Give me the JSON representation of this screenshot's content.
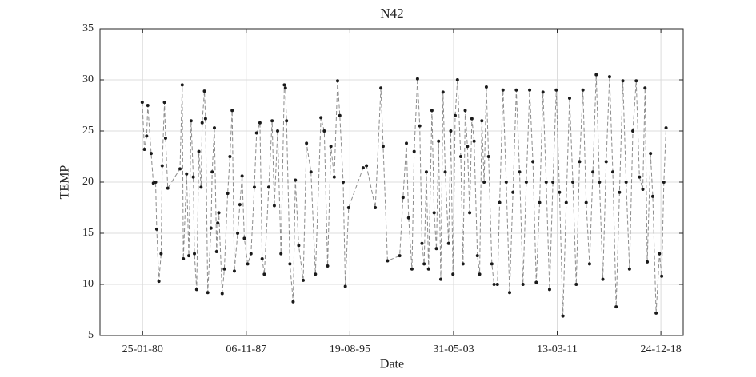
{
  "chart_data": {
    "type": "line",
    "title": "N42",
    "xlabel": "Date",
    "ylabel": "TEMP",
    "x": [
      "1980-01-15",
      "1980-03-15",
      "1980-05-15",
      "1980-06-15",
      "1980-09-15",
      "1980-11-15",
      "1981-01-15",
      "1981-02-15",
      "1981-04-15",
      "1981-06-15",
      "1981-07-15",
      "1981-09-15",
      "1981-10-15",
      "1981-12-15",
      "1982-11-15",
      "1983-01-15",
      "1983-02-15",
      "1983-05-15",
      "1983-07-15",
      "1983-09-15",
      "1983-11-15",
      "1983-12-15",
      "1984-02-15",
      "1984-04-15",
      "1984-06-15",
      "1984-07-15",
      "1984-09-15",
      "1984-10-15",
      "1984-12-15",
      "1985-03-15",
      "1985-04-15",
      "1985-06-15",
      "1985-08-15",
      "1985-09-15",
      "1985-10-15",
      "1986-01-15",
      "1986-03-15",
      "1986-06-15",
      "1986-08-15",
      "1986-10-15",
      "1986-12-15",
      "1987-03-15",
      "1987-05-15",
      "1987-07-15",
      "1987-09-15",
      "1987-12-15",
      "1988-03-15",
      "1988-06-15",
      "1988-08-15",
      "1988-11-15",
      "1989-01-15",
      "1989-03-15",
      "1989-07-15",
      "1989-10-15",
      "1989-12-15",
      "1990-03-15",
      "1990-06-15",
      "1990-09-15",
      "1990-10-15",
      "1990-11-15",
      "1991-02-15",
      "1991-05-15",
      "1991-07-15",
      "1991-10-15",
      "1992-02-15",
      "1992-05-15",
      "1992-09-15",
      "1993-01-15",
      "1993-06-15",
      "1993-09-15",
      "1993-12-15",
      "1994-03-15",
      "1994-06-15",
      "1994-09-15",
      "1994-11-15",
      "1995-02-15",
      "1995-04-15",
      "1995-07-15",
      "1996-08-15",
      "1996-11-15",
      "1997-07-15",
      "1997-12-15",
      "1998-02-15",
      "1998-06-15",
      "1999-05-15",
      "1999-08-15",
      "1999-11-15",
      "2000-01-15",
      "2000-04-15",
      "2000-06-15",
      "2000-09-15",
      "2000-11-15",
      "2001-01-15",
      "2001-03-15",
      "2001-05-15",
      "2001-07-15",
      "2001-10-15",
      "2001-12-15",
      "2002-02-15",
      "2002-04-15",
      "2002-06-15",
      "2002-08-15",
      "2002-10-15",
      "2003-01-15",
      "2003-03-15",
      "2003-05-15",
      "2003-07-15",
      "2003-09-15",
      "2003-12-15",
      "2004-02-15",
      "2004-04-15",
      "2004-06-15",
      "2004-08-15",
      "2004-10-15",
      "2004-12-15",
      "2005-03-15",
      "2005-05-15",
      "2005-07-15",
      "2005-09-15",
      "2005-11-15",
      "2006-01-15",
      "2006-04-15",
      "2006-06-15",
      "2006-09-15",
      "2006-11-15",
      "2007-02-15",
      "2007-05-15",
      "2007-08-15",
      "2007-11-15",
      "2008-02-15",
      "2008-05-15",
      "2008-08-15",
      "2008-11-15",
      "2009-02-15",
      "2009-05-15",
      "2009-08-15",
      "2009-11-15",
      "2010-02-15",
      "2010-05-15",
      "2010-08-15",
      "2010-11-15",
      "2011-02-15",
      "2011-05-15",
      "2011-08-15",
      "2011-11-15",
      "2012-02-15",
      "2012-05-15",
      "2012-08-15",
      "2012-11-15",
      "2013-02-15",
      "2013-05-15",
      "2013-08-15",
      "2013-11-15",
      "2014-02-15",
      "2014-05-15",
      "2014-08-15",
      "2014-11-15",
      "2015-02-15",
      "2015-05-15",
      "2015-08-15",
      "2015-11-15",
      "2016-02-15",
      "2016-05-15",
      "2016-08-15",
      "2016-11-15",
      "2017-02-15",
      "2017-05-15",
      "2017-08-15",
      "2017-10-15",
      "2017-12-15",
      "2018-03-15",
      "2018-05-15",
      "2018-08-15",
      "2018-11-15",
      "2019-01-15",
      "2019-03-15",
      "2019-05-15"
    ],
    "values": [
      27.8,
      23.2,
      24.5,
      27.5,
      22.8,
      19.9,
      20.0,
      15.4,
      10.3,
      13.0,
      21.6,
      27.8,
      24.3,
      19.4,
      21.3,
      29.5,
      12.5,
      20.8,
      12.8,
      26.0,
      20.5,
      13.0,
      9.5,
      23.0,
      19.5,
      25.8,
      28.9,
      26.2,
      9.2,
      15.5,
      21.0,
      25.3,
      13.2,
      16.0,
      17.0,
      9.1,
      11.5,
      18.9,
      22.5,
      27.0,
      11.3,
      15.0,
      17.8,
      20.6,
      14.5,
      12.0,
      13.0,
      19.5,
      24.8,
      25.8,
      12.5,
      11.0,
      19.5,
      26.0,
      17.7,
      25.0,
      13.0,
      29.5,
      29.2,
      26.0,
      12.0,
      8.3,
      20.2,
      13.8,
      10.4,
      23.8,
      21.0,
      11.0,
      26.3,
      25.0,
      11.8,
      23.5,
      20.5,
      29.9,
      26.5,
      20.0,
      9.8,
      17.5,
      21.4,
      21.6,
      17.5,
      29.2,
      23.5,
      12.3,
      12.8,
      18.5,
      23.8,
      16.5,
      11.5,
      23.0,
      30.1,
      25.5,
      14.0,
      12.0,
      21.0,
      11.5,
      27.0,
      17.0,
      13.5,
      24.0,
      10.5,
      28.8,
      21.0,
      14.0,
      25.0,
      11.0,
      26.5,
      30.0,
      22.5,
      12.0,
      27.0,
      23.5,
      17.0,
      26.2,
      24.0,
      12.8,
      11.0,
      26.0,
      20.0,
      29.3,
      22.5,
      12.0,
      10.0,
      10.0,
      18,
      29.0,
      20,
      9.2,
      19,
      29.0,
      21,
      10.0,
      20,
      29.0,
      22,
      10.2,
      18,
      28.8,
      20,
      9.5,
      20,
      29.0,
      19,
      6.9,
      18,
      28.2,
      20,
      10.0,
      22,
      29.0,
      18,
      12.0,
      21,
      30.5,
      20,
      10.5,
      22,
      30.3,
      21,
      7.8,
      19,
      29.9,
      20,
      11.5,
      25,
      29.9,
      20.5,
      19.3,
      29.2,
      12.2,
      22.8,
      18.6,
      7.2,
      13.0,
      10.8,
      20.0,
      25.3
    ],
    "line_color": "#8c8c8c",
    "marker_color": "#1a1a1a",
    "xlim": [
      "1976-11-12",
      "2020-08-27"
    ],
    "xticks": [
      {
        "value": "1980-01-25",
        "label": "25-01-80"
      },
      {
        "value": "1987-11-06",
        "label": "06-11-87"
      },
      {
        "value": "1995-08-19",
        "label": "19-08-95"
      },
      {
        "value": "2003-05-31",
        "label": "31-05-03"
      },
      {
        "value": "2011-03-13",
        "label": "13-03-11"
      },
      {
        "value": "2018-12-24",
        "label": "24-12-18"
      }
    ],
    "ylim": [
      5,
      35
    ],
    "yticks": [
      5,
      10,
      15,
      20,
      25,
      30,
      35
    ],
    "grid": true
  }
}
